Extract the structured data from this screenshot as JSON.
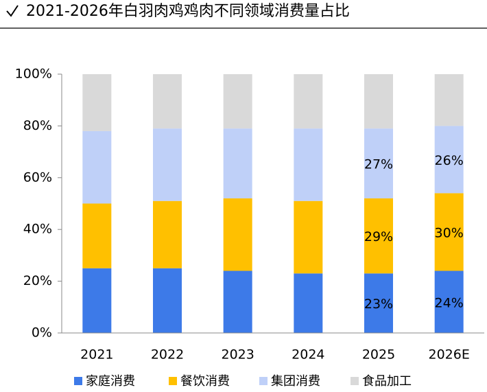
{
  "chart_data": {
    "type": "stacked_bar",
    "title": "2021-2026年白羽肉鸡鸡肉不同领域消费量占比",
    "categories": [
      "2021",
      "2022",
      "2023",
      "2024",
      "2025",
      "2026E"
    ],
    "series": [
      {
        "name": "家庭消费",
        "color": "#3d7ae8",
        "values": [
          25,
          25,
          24,
          23,
          23,
          24
        ],
        "value_labels": [
          null,
          null,
          null,
          null,
          "23%",
          "24%"
        ]
      },
      {
        "name": "餐饮消费",
        "color": "#ffc000",
        "values": [
          25,
          26,
          28,
          28,
          29,
          30
        ],
        "value_labels": [
          null,
          null,
          null,
          null,
          "29%",
          "30%"
        ]
      },
      {
        "name": "集团消费",
        "color": "#bfd0f8",
        "values": [
          28,
          28,
          27,
          28,
          27,
          26
        ],
        "value_labels": [
          null,
          null,
          null,
          null,
          "27%",
          "26%"
        ]
      },
      {
        "name": "食品加工",
        "color": "#d9d9d9",
        "values": [
          22,
          21,
          21,
          21,
          21,
          20
        ]
      }
    ],
    "ylim": [
      0,
      100
    ],
    "yticks": [
      {
        "value": 0,
        "label": "0%"
      },
      {
        "value": 20,
        "label": "20%"
      },
      {
        "value": 40,
        "label": "40%"
      },
      {
        "value": 60,
        "label": "60%"
      },
      {
        "value": 80,
        "label": "80%"
      },
      {
        "value": 100,
        "label": "100%"
      }
    ],
    "legend": "bottom"
  }
}
